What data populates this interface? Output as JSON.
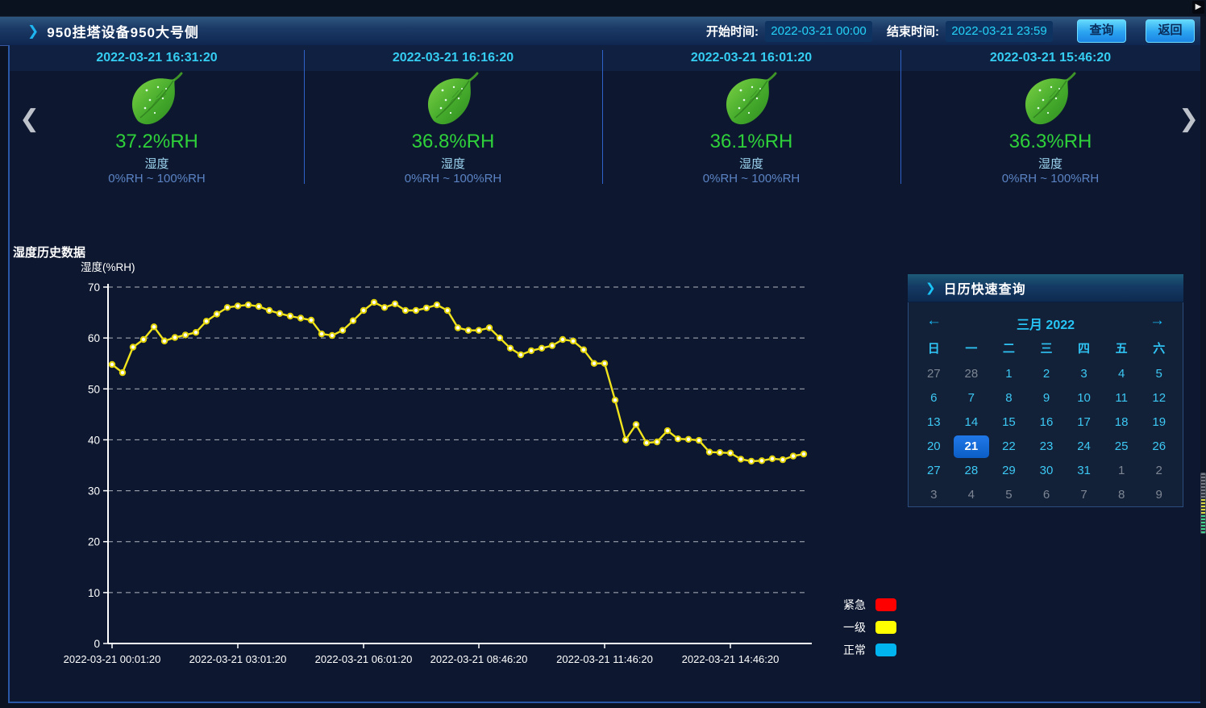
{
  "icons": {
    "chevron_right": "❯",
    "chevron_left": "❮",
    "arrow_left": "←",
    "arrow_right": "→",
    "play": "▶"
  },
  "header": {
    "title": "950挂塔设备950大号侧",
    "start_time_label": "开始时间:",
    "start_time_value": "2022-03-21 00:00",
    "end_time_label": "结束时间:",
    "end_time_value": "2022-03-21 23:59",
    "query_button": "查询",
    "back_button": "返回"
  },
  "sensor_cards": [
    {
      "timestamp": "2022-03-21 16:31:20",
      "value": "37.2%RH",
      "label": "湿度",
      "range": "0%RH ~ 100%RH"
    },
    {
      "timestamp": "2022-03-21 16:16:20",
      "value": "36.8%RH",
      "label": "湿度",
      "range": "0%RH ~ 100%RH"
    },
    {
      "timestamp": "2022-03-21 16:01:20",
      "value": "36.1%RH",
      "label": "湿度",
      "range": "0%RH ~ 100%RH"
    },
    {
      "timestamp": "2022-03-21 15:46:20",
      "value": "36.3%RH",
      "label": "湿度",
      "range": "0%RH ~ 100%RH"
    }
  ],
  "chart_section_title": "湿度历史数据",
  "chart_data": {
    "type": "line",
    "title": "湿度历史数据",
    "ylabel": "湿度(%RH)",
    "ylim": [
      0,
      70
    ],
    "yticks": [
      0,
      10,
      20,
      30,
      40,
      50,
      60,
      70
    ],
    "grid": "dashed",
    "x_tick_labels": [
      "2022-03-21 00:01:20",
      "2022-03-21 03:01:20",
      "2022-03-21 06:01:20",
      "2022-03-21 08:46:20",
      "2022-03-21 11:46:20",
      "2022-03-21 14:46:20"
    ],
    "x_tick_point_indices": [
      0,
      12,
      24,
      35,
      47,
      59
    ],
    "series": [
      {
        "name": "湿度",
        "color": "#f2e41c",
        "values": [
          54.8,
          53.2,
          58.2,
          59.7,
          62.2,
          59.4,
          60.1,
          60.6,
          61.1,
          63.3,
          64.7,
          66.0,
          66.3,
          66.5,
          66.2,
          65.4,
          64.8,
          64.3,
          63.9,
          63.5,
          60.8,
          60.5,
          61.5,
          63.4,
          65.4,
          67.0,
          66.0,
          66.7,
          65.4,
          65.4,
          65.9,
          66.5,
          65.4,
          62.0,
          61.5,
          61.5,
          62.0,
          60.0,
          58.0,
          56.7,
          57.5,
          58.0,
          58.5,
          59.7,
          59.4,
          57.7,
          55.0,
          55.0,
          47.8,
          40.0,
          43.0,
          39.4,
          39.6,
          41.8,
          40.2,
          40.1,
          39.9,
          37.6,
          37.5,
          37.4,
          36.2,
          35.8,
          35.9,
          36.3,
          36.1,
          36.8,
          37.2
        ]
      }
    ],
    "legend": [
      {
        "label": "紧急",
        "color": "#ff0000"
      },
      {
        "label": "一级",
        "color": "#ffff00"
      },
      {
        "label": "正常",
        "color": "#00b4f0"
      }
    ],
    "legend_position": "bottom-right"
  },
  "calendar": {
    "panel_title": "日历快速查询",
    "month_title": "三月 2022",
    "weekdays": [
      "日",
      "一",
      "二",
      "三",
      "四",
      "五",
      "六"
    ],
    "selected_day": "21",
    "days": [
      {
        "d": "27",
        "muted": true
      },
      {
        "d": "28",
        "muted": true
      },
      {
        "d": "1"
      },
      {
        "d": "2"
      },
      {
        "d": "3"
      },
      {
        "d": "4"
      },
      {
        "d": "5"
      },
      {
        "d": "6"
      },
      {
        "d": "7"
      },
      {
        "d": "8"
      },
      {
        "d": "9"
      },
      {
        "d": "10"
      },
      {
        "d": "11"
      },
      {
        "d": "12"
      },
      {
        "d": "13"
      },
      {
        "d": "14"
      },
      {
        "d": "15"
      },
      {
        "d": "16"
      },
      {
        "d": "17"
      },
      {
        "d": "18"
      },
      {
        "d": "19"
      },
      {
        "d": "20"
      },
      {
        "d": "21",
        "selected": true
      },
      {
        "d": "22"
      },
      {
        "d": "23"
      },
      {
        "d": "24"
      },
      {
        "d": "25"
      },
      {
        "d": "26"
      },
      {
        "d": "27"
      },
      {
        "d": "28"
      },
      {
        "d": "29"
      },
      {
        "d": "30"
      },
      {
        "d": "31"
      },
      {
        "d": "1",
        "muted": true
      },
      {
        "d": "2",
        "muted": true
      },
      {
        "d": "3",
        "muted": true
      },
      {
        "d": "4",
        "muted": true
      },
      {
        "d": "5",
        "muted": true
      },
      {
        "d": "6",
        "muted": true
      },
      {
        "d": "7",
        "muted": true
      },
      {
        "d": "8",
        "muted": true
      },
      {
        "d": "9",
        "muted": true
      }
    ]
  },
  "colors": {
    "accent_cyan": "#2bc8f4",
    "value_green": "#2fd13a",
    "line_yellow": "#f2e41c",
    "selected_day_blue": "#0f6fd9"
  }
}
